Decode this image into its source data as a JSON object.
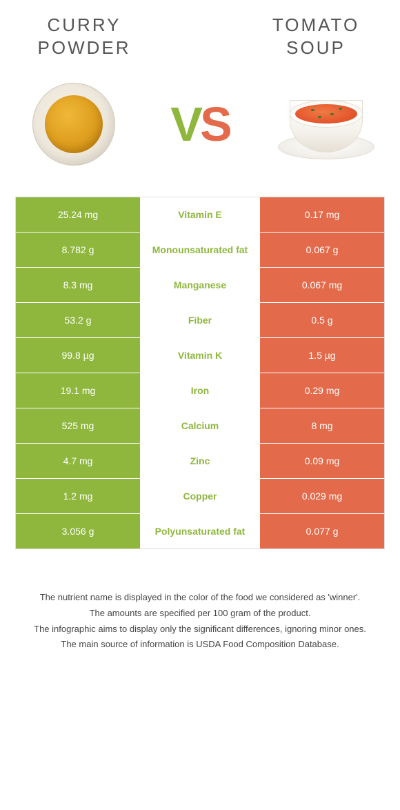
{
  "header": {
    "left_title": "CURRY POWDER",
    "right_title": "TOMATO SOUP",
    "vs_v": "V",
    "vs_s": "S"
  },
  "colors": {
    "left": "#8fb73e",
    "right": "#e36a4a",
    "mid_text_left": "#8fb73e",
    "mid_text_right": "#e36a4a"
  },
  "rows": [
    {
      "left": "25.24 mg",
      "label": "Vitamin E",
      "right": "0.17 mg",
      "winner": "left"
    },
    {
      "left": "8.782 g",
      "label": "Monounsaturated fat",
      "right": "0.067 g",
      "winner": "left"
    },
    {
      "left": "8.3 mg",
      "label": "Manganese",
      "right": "0.067 mg",
      "winner": "left"
    },
    {
      "left": "53.2 g",
      "label": "Fiber",
      "right": "0.5 g",
      "winner": "left"
    },
    {
      "left": "99.8 µg",
      "label": "Vitamin K",
      "right": "1.5 µg",
      "winner": "left"
    },
    {
      "left": "19.1 mg",
      "label": "Iron",
      "right": "0.29 mg",
      "winner": "left"
    },
    {
      "left": "525 mg",
      "label": "Calcium",
      "right": "8 mg",
      "winner": "left"
    },
    {
      "left": "4.7 mg",
      "label": "Zinc",
      "right": "0.09 mg",
      "winner": "left"
    },
    {
      "left": "1.2 mg",
      "label": "Copper",
      "right": "0.029 mg",
      "winner": "left"
    },
    {
      "left": "3.056 g",
      "label": "Polyunsaturated fat",
      "right": "0.077 g",
      "winner": "left"
    }
  ],
  "footer": {
    "line1": "The nutrient name is displayed in the color of the food we considered as 'winner'.",
    "line2": "The amounts are specified per 100 gram of the product.",
    "line3": "The infographic aims to display only the significant differences, ignoring minor ones.",
    "line4": "The main source of information is USDA Food Composition Database."
  }
}
